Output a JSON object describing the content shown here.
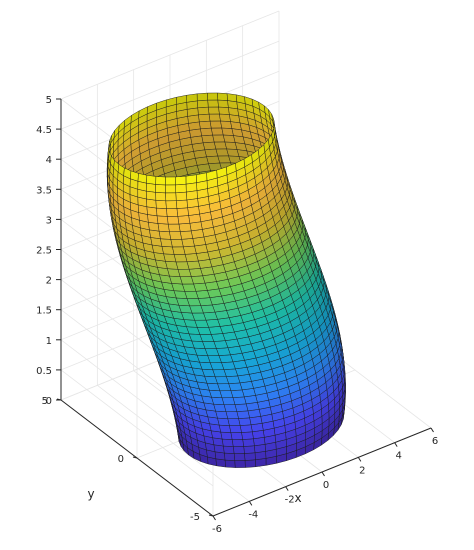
{
  "chart_data": {
    "type": "surface3d",
    "title": "",
    "xlabel": "x",
    "ylabel": "y",
    "zlabel": "",
    "xlim": [
      -6,
      6
    ],
    "ylim": [
      -5,
      5
    ],
    "zlim": [
      0,
      5
    ],
    "x_ticks": [
      "-6",
      "-4",
      "-2",
      "0",
      "2",
      "4",
      "6"
    ],
    "y_ticks": [
      "-5",
      "0",
      "5"
    ],
    "z_ticks": [
      "0",
      "0.5",
      "1",
      "1.5",
      "2",
      "2.5",
      "3",
      "3.5",
      "4",
      "4.5",
      "5"
    ],
    "grid": true,
    "colormap": [
      "#3e26a8",
      "#4743f0",
      "#2e84f8",
      "#17a9d8",
      "#1fc3aa",
      "#6ccd5a",
      "#d2bb31",
      "#fdbe3d",
      "#f8fa0d"
    ],
    "surface": {
      "shape": "open tube, elliptical cross-section, radius varies with height",
      "x_semi_axis": 4,
      "y_semi_axis": 2.6,
      "x_center_bottom": 0,
      "x_center_top": -3,
      "y_center_bottom": -1,
      "y_center_top": 0,
      "radius_scale_bottom": 1.0,
      "radius_scale_middle": 1.12,
      "radius_scale_top": 1.0,
      "height_segments": 40,
      "angular_segments": 50
    }
  }
}
